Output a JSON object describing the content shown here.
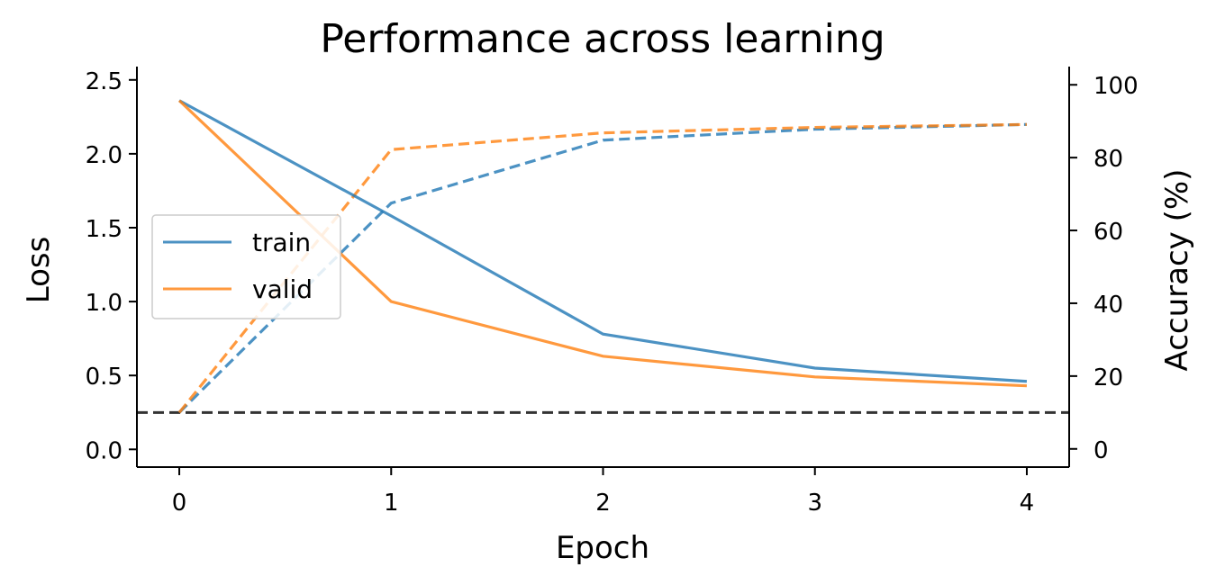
{
  "chart_data": {
    "type": "line",
    "title": "Performance across learning",
    "xlabel": "Epoch",
    "ylabel_left": "Loss",
    "ylabel_right": "Accuracy (%)",
    "x": [
      0,
      1,
      2,
      3,
      4
    ],
    "xticks": [
      "0",
      "1",
      "2",
      "3",
      "4"
    ],
    "xlim": [
      -0.2,
      4.2
    ],
    "ylim_left": [
      -0.12,
      2.59
    ],
    "ylim_right": [
      -5,
      105
    ],
    "yticks_left": [
      "0.0",
      "0.5",
      "1.0",
      "1.5",
      "2.0",
      "2.5"
    ],
    "yticks_right": [
      "0",
      "20",
      "40",
      "60",
      "80",
      "100"
    ],
    "loss_series": [
      {
        "name": "train",
        "color": "#1f77b4",
        "values": [
          2.36,
          1.58,
          0.78,
          0.55,
          0.46
        ]
      },
      {
        "name": "valid",
        "color": "#ff7f0e",
        "values": [
          2.36,
          1.0,
          0.63,
          0.49,
          0.43
        ]
      }
    ],
    "accuracy_series": [
      {
        "color": "#1f77b4",
        "values": [
          10,
          67.5,
          84.8,
          87.8,
          89.1
        ]
      },
      {
        "color": "#ff7f0e",
        "values": [
          10,
          82.2,
          86.8,
          88.3,
          89.1
        ]
      }
    ],
    "reference_line": {
      "axis": "right",
      "value": 10,
      "color": "#333333",
      "style": "dashed"
    },
    "legend": {
      "position": "center-left",
      "entries": [
        "train",
        "valid"
      ]
    },
    "grid": false
  }
}
